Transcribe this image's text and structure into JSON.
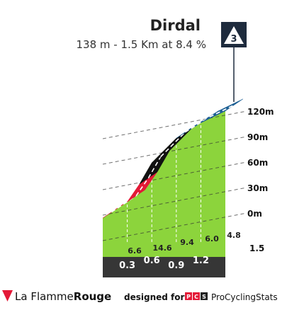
{
  "header": {
    "title": "Dirdal",
    "subtitle": "138 m - 1.5 Km at 8.4 %",
    "category": "3"
  },
  "chart_data": {
    "type": "area",
    "title": "Dirdal",
    "subtitle": "138 m - 1.5 Km at 8.4 %",
    "y_ticks": [
      {
        "value": 120,
        "label": "120m"
      },
      {
        "value": 90,
        "label": "90m"
      },
      {
        "value": 60,
        "label": "60m"
      },
      {
        "value": 30,
        "label": "30m"
      },
      {
        "value": 0,
        "label": "0m"
      }
    ],
    "x_total_label": "1.5",
    "x_ticks": [
      {
        "km": 0.3,
        "label": "0.3"
      },
      {
        "km": 0.6,
        "label": "0.6"
      },
      {
        "km": 0.9,
        "label": "0.9"
      },
      {
        "km": 1.2,
        "label": "1.2"
      }
    ],
    "segments": [
      {
        "gradient": 6.6,
        "label": "6.6",
        "color": "#e31937"
      },
      {
        "gradient": 14.6,
        "label": "14.6",
        "color": "#111111"
      },
      {
        "gradient": 9.4,
        "label": "9.4",
        "color": "#111111"
      },
      {
        "gradient": 6.0,
        "label": "6.0",
        "color": "#1b5e93"
      },
      {
        "gradient": 4.8,
        "label": "4.8",
        "color": "#1b5e93"
      }
    ],
    "profile": [
      {
        "km": 0.0,
        "alt": 10
      },
      {
        "km": 0.3,
        "alt": 29
      },
      {
        "km": 0.45,
        "alt": 50
      },
      {
        "km": 0.6,
        "alt": 75
      },
      {
        "km": 0.9,
        "alt": 104
      },
      {
        "km": 1.2,
        "alt": 122
      },
      {
        "km": 1.5,
        "alt": 136
      }
    ],
    "grid": true,
    "colors": {
      "fill": "#8cd43c",
      "side": "#a49b8b",
      "base": "#363636",
      "grid": "#333333"
    }
  },
  "footer": {
    "brand_light": "La Flamme",
    "brand_bold": "Rouge",
    "designed": "designed for",
    "pcs_logo": "PCS",
    "pcs": "ProCyclingStats"
  }
}
